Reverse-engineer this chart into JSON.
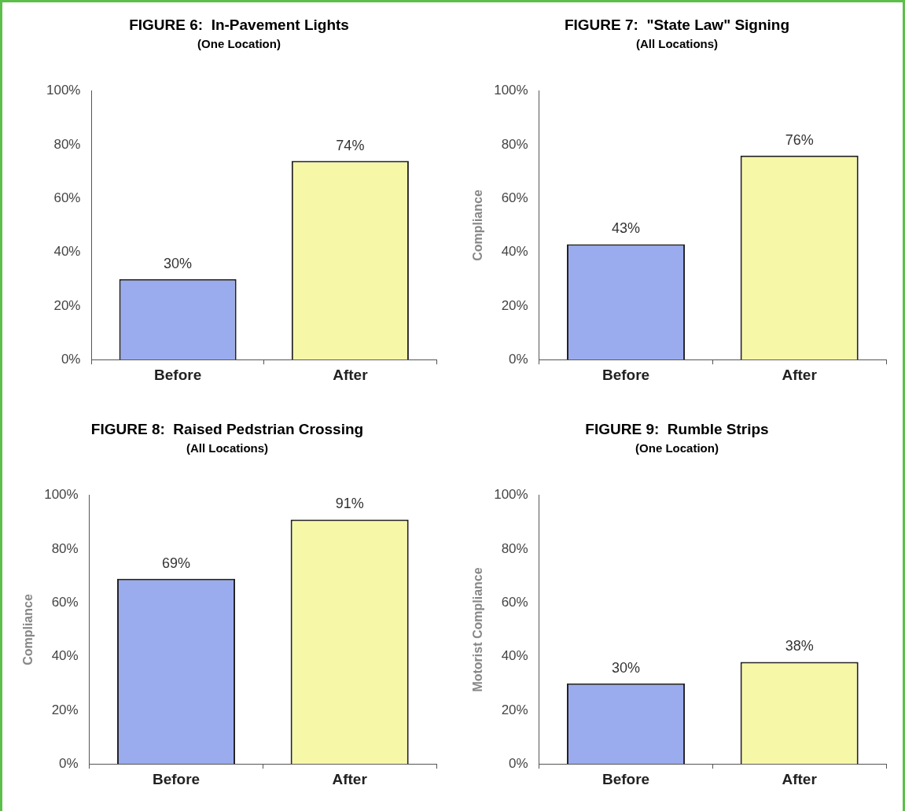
{
  "chart_data": [
    {
      "type": "bar",
      "title": "FIGURE 6:  In-Pavement Lights",
      "subtitle": "(One Location)",
      "categories": [
        "Before",
        "After"
      ],
      "values": [
        30,
        74
      ],
      "colors": [
        "#9aabee",
        "#f7f7a8"
      ],
      "value_labels": [
        "30%",
        "74%"
      ],
      "ylim": [
        0,
        100
      ],
      "yticks": [
        {
          "value": 0,
          "label": "0%"
        },
        {
          "value": 20,
          "label": "20%"
        },
        {
          "value": 40,
          "label": "40%"
        },
        {
          "value": 60,
          "label": "60%"
        },
        {
          "value": 80,
          "label": "80%"
        },
        {
          "value": 100,
          "label": "100%"
        }
      ]
    },
    {
      "type": "bar",
      "title": "FIGURE 7:  \"State Law\" Signing",
      "subtitle": "(All Locations)",
      "ylabel": "Compliance",
      "categories": [
        "Before",
        "After"
      ],
      "values": [
        43,
        76
      ],
      "colors": [
        "#9aabee",
        "#f7f7a8"
      ],
      "value_labels": [
        "43%",
        "76%"
      ],
      "ylim": [
        0,
        100
      ],
      "yticks": [
        {
          "value": 0,
          "label": "0%"
        },
        {
          "value": 20,
          "label": "20%"
        },
        {
          "value": 40,
          "label": "40%"
        },
        {
          "value": 60,
          "label": "60%"
        },
        {
          "value": 80,
          "label": "80%"
        },
        {
          "value": 100,
          "label": "100%"
        }
      ]
    },
    {
      "type": "bar",
      "title": "FIGURE 8:  Raised Pedstrian Crossing",
      "subtitle": "(All Locations)",
      "ylabel": "Compliance",
      "categories": [
        "Before",
        "After"
      ],
      "values": [
        69,
        91
      ],
      "colors": [
        "#9aabee",
        "#f7f7a8"
      ],
      "value_labels": [
        "69%",
        "91%"
      ],
      "ylim": [
        0,
        100
      ],
      "yticks": [
        {
          "value": 0,
          "label": "0%"
        },
        {
          "value": 20,
          "label": "20%"
        },
        {
          "value": 40,
          "label": "40%"
        },
        {
          "value": 60,
          "label": "60%"
        },
        {
          "value": 80,
          "label": "80%"
        },
        {
          "value": 100,
          "label": "100%"
        }
      ]
    },
    {
      "type": "bar",
      "title": "FIGURE 9:  Rumble Strips",
      "subtitle": "(One Location)",
      "ylabel": "Motorist Compliance",
      "categories": [
        "Before",
        "After"
      ],
      "values": [
        30,
        38
      ],
      "colors": [
        "#9aabee",
        "#f7f7a8"
      ],
      "value_labels": [
        "30%",
        "38%"
      ],
      "ylim": [
        0,
        100
      ],
      "yticks": [
        {
          "value": 0,
          "label": "0%"
        },
        {
          "value": 20,
          "label": "20%"
        },
        {
          "value": 40,
          "label": "40%"
        },
        {
          "value": 60,
          "label": "60%"
        },
        {
          "value": 80,
          "label": "80%"
        },
        {
          "value": 100,
          "label": "100%"
        }
      ]
    }
  ]
}
